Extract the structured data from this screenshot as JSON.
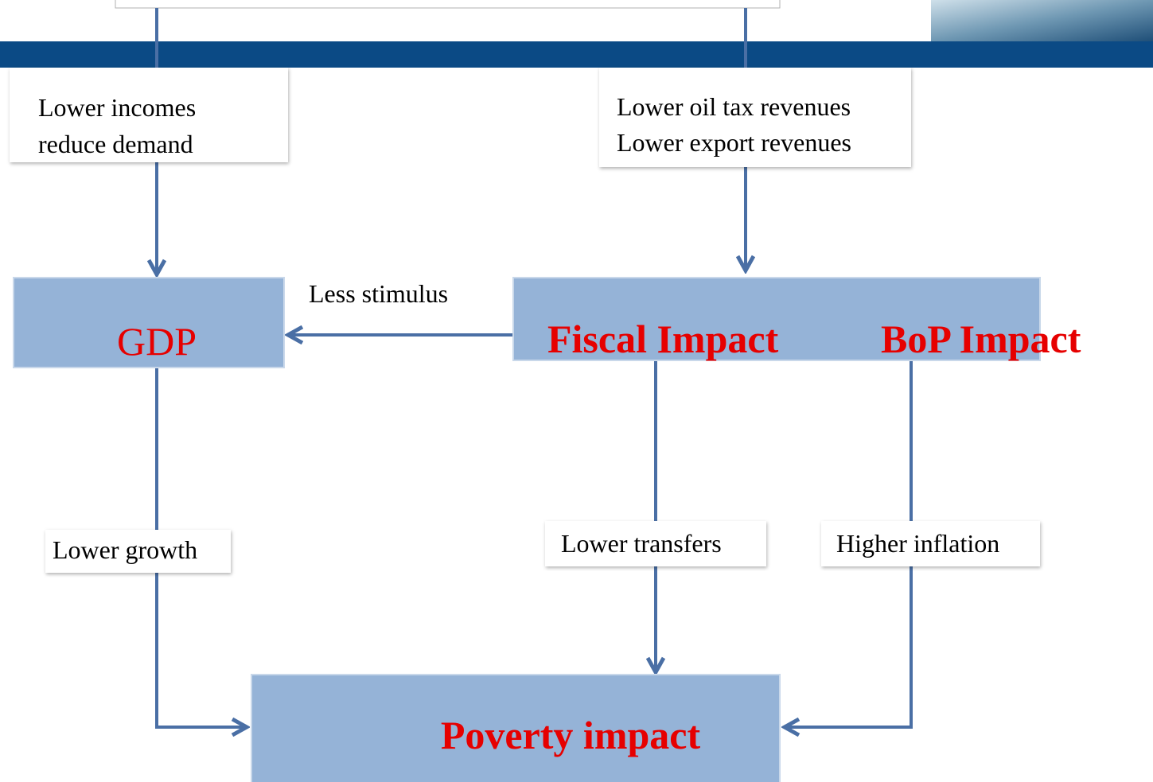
{
  "nodes": [
    {
      "label": "GDP"
    },
    {
      "label": "Fiscal Impact"
    },
    {
      "label": "BoP Impact"
    },
    {
      "label": "Poverty impact"
    }
  ],
  "edges": [
    {
      "label": [
        "Lower incomes",
        "reduce demand"
      ]
    },
    {
      "label": [
        "Lower oil tax revenues",
        "Lower export revenues"
      ]
    },
    {
      "label": [
        "Less stimulus"
      ]
    },
    {
      "label": [
        "Lower growth"
      ]
    },
    {
      "label": [
        "Lower transfers"
      ]
    },
    {
      "label": [
        "Higher inflation"
      ]
    }
  ]
}
